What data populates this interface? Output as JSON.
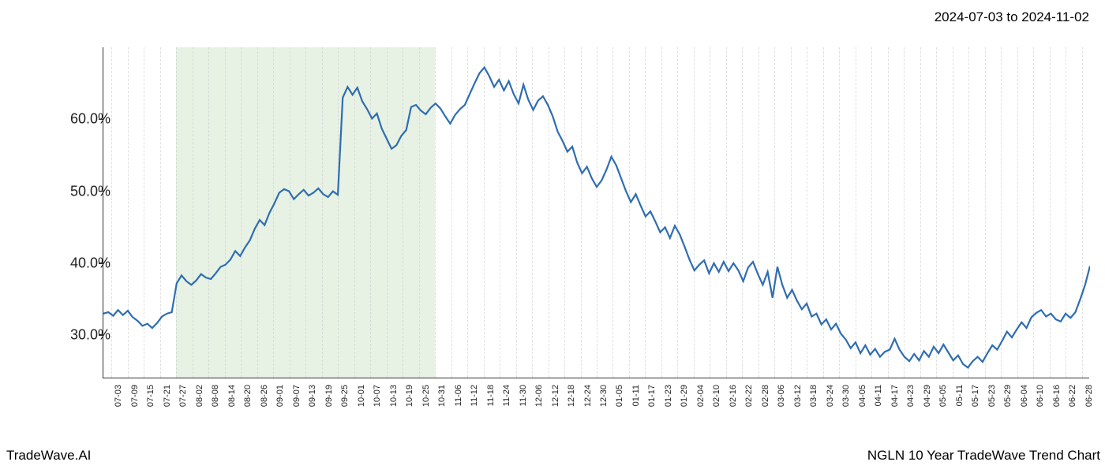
{
  "header": {
    "date_range": "2024-07-03 to 2024-11-02"
  },
  "footer": {
    "left": "TradeWave.AI",
    "right": "NGLN 10 Year TradeWave Trend Chart"
  },
  "chart": {
    "type": "line",
    "background_color": "#ffffff",
    "grid_color": "#cccccc",
    "axis_color": "#333333",
    "line_color": "#2f6db0",
    "line_width": 2.2,
    "highlight_band": {
      "color": "#d4e8ce",
      "opacity": 0.55,
      "x_start_index": 4,
      "x_end_index": 20
    },
    "ylim": [
      24,
      70
    ],
    "yticks": [
      {
        "value": 30,
        "label": "30.0%"
      },
      {
        "value": 40,
        "label": "40.0%"
      },
      {
        "value": 50,
        "label": "50.0%"
      },
      {
        "value": 60,
        "label": "60.0%"
      }
    ],
    "x_labels": [
      "07-03",
      "07-09",
      "07-15",
      "07-21",
      "07-27",
      "08-02",
      "08-08",
      "08-14",
      "08-20",
      "08-26",
      "09-01",
      "09-07",
      "09-13",
      "09-19",
      "09-25",
      "10-01",
      "10-07",
      "10-13",
      "10-19",
      "10-25",
      "10-31",
      "11-06",
      "11-12",
      "11-18",
      "11-24",
      "11-30",
      "12-06",
      "12-12",
      "12-18",
      "12-24",
      "12-30",
      "01-05",
      "01-11",
      "01-17",
      "01-23",
      "01-29",
      "02-04",
      "02-10",
      "02-16",
      "02-22",
      "02-28",
      "03-06",
      "03-12",
      "03-18",
      "03-24",
      "03-30",
      "04-05",
      "04-11",
      "04-17",
      "04-23",
      "04-29",
      "05-05",
      "05-11",
      "05-17",
      "05-23",
      "05-29",
      "06-04",
      "06-10",
      "06-16",
      "06-22",
      "06-28"
    ],
    "x_label_fontsize": 11,
    "y_label_fontsize": 18,
    "series": [
      33.0,
      33.2,
      32.7,
      33.5,
      32.8,
      33.4,
      32.5,
      32.0,
      31.3,
      31.6,
      31.0,
      31.7,
      32.6,
      33.0,
      33.2,
      37.2,
      38.3,
      37.5,
      37.0,
      37.6,
      38.5,
      38.0,
      37.8,
      38.6,
      39.5,
      39.8,
      40.5,
      41.7,
      41.0,
      42.2,
      43.2,
      44.8,
      46.0,
      45.3,
      47.0,
      48.3,
      49.8,
      50.3,
      50.0,
      48.9,
      49.6,
      50.2,
      49.4,
      49.8,
      50.4,
      49.6,
      49.2,
      50.0,
      49.5,
      63.0,
      64.5,
      63.4,
      64.4,
      62.5,
      61.4,
      60.1,
      60.8,
      58.7,
      57.3,
      55.9,
      56.4,
      57.7,
      58.5,
      61.7,
      62.0,
      61.2,
      60.7,
      61.6,
      62.2,
      61.5,
      60.4,
      59.4,
      60.6,
      61.4,
      62.0,
      63.5,
      65.0,
      66.4,
      67.2,
      66.0,
      64.5,
      65.5,
      64.0,
      65.3,
      63.5,
      62.2,
      64.8,
      62.7,
      61.3,
      62.6,
      63.2,
      62.0,
      60.4,
      58.3,
      57.0,
      55.5,
      56.2,
      54.0,
      52.5,
      53.4,
      51.8,
      50.6,
      51.5,
      53.0,
      54.8,
      53.6,
      51.8,
      50.0,
      48.5,
      49.6,
      48.0,
      46.5,
      47.2,
      45.8,
      44.3,
      45.0,
      43.5,
      45.2,
      44.0,
      42.3,
      40.5,
      39.0,
      39.8,
      40.4,
      38.6,
      40.0,
      38.8,
      40.2,
      38.9,
      40.0,
      39.0,
      37.5,
      39.4,
      40.2,
      38.5,
      37.0,
      38.8,
      35.2,
      39.5,
      37.0,
      35.2,
      36.3,
      34.8,
      33.6,
      34.4,
      32.6,
      33.0,
      31.5,
      32.2,
      30.8,
      31.6,
      30.2,
      29.4,
      28.2,
      29.0,
      27.5,
      28.6,
      27.3,
      28.1,
      27.0,
      27.7,
      28.0,
      29.5,
      28.0,
      27.0,
      26.4,
      27.4,
      26.5,
      27.8,
      27.0,
      28.4,
      27.5,
      28.7,
      27.6,
      26.5,
      27.2,
      26.0,
      25.5,
      26.4,
      27.0,
      26.3,
      27.5,
      28.6,
      28.0,
      29.2,
      30.5,
      29.7,
      30.8,
      31.8,
      31.0,
      32.5,
      33.1,
      33.5,
      32.6,
      33.0,
      32.2,
      31.9,
      33.0,
      32.4,
      33.2,
      35.0,
      37.0,
      39.6
    ]
  }
}
